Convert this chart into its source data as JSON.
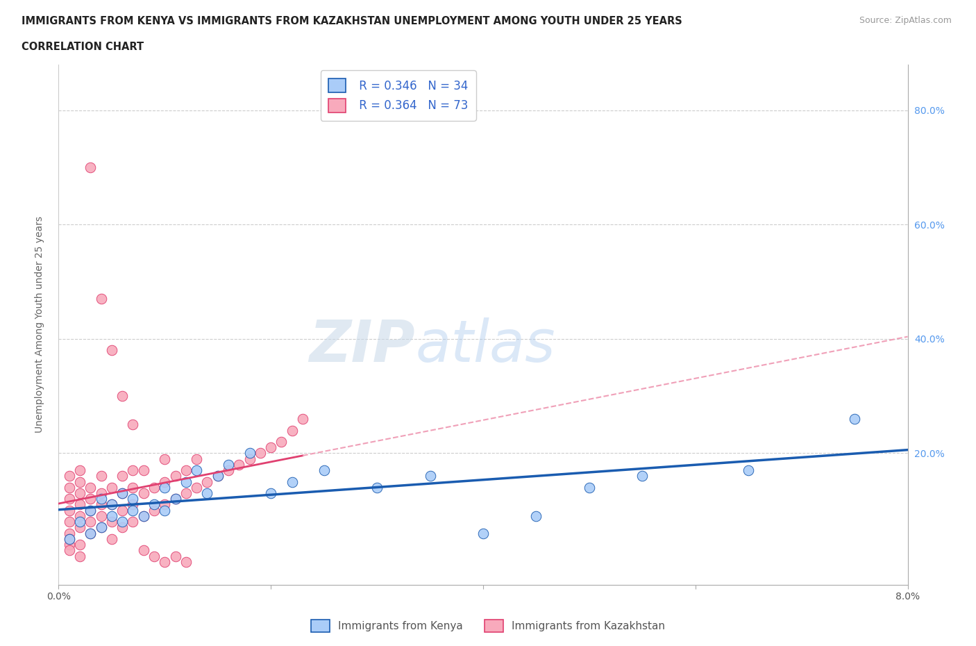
{
  "title_line1": "IMMIGRANTS FROM KENYA VS IMMIGRANTS FROM KAZAKHSTAN UNEMPLOYMENT AMONG YOUTH UNDER 25 YEARS",
  "title_line2": "CORRELATION CHART",
  "source": "Source: ZipAtlas.com",
  "ylabel": "Unemployment Among Youth under 25 years",
  "xlim": [
    0.0,
    0.08
  ],
  "ylim": [
    -0.03,
    0.88
  ],
  "legend_kenya": "Immigrants from Kenya",
  "legend_kazakhstan": "Immigrants from Kazakhstan",
  "r_kenya": 0.346,
  "n_kenya": 34,
  "r_kazakhstan": 0.364,
  "n_kazakhstan": 73,
  "kenya_color": "#aaccf8",
  "kenya_line_color": "#1a5cb0",
  "kazakhstan_color": "#f8aabc",
  "kazakhstan_line_color": "#e04070",
  "kazakhstan_dashed_color": "#f0a0b8",
  "watermark_zip": "ZIP",
  "watermark_atlas": "atlas",
  "kenya_x": [
    0.001,
    0.002,
    0.003,
    0.003,
    0.004,
    0.004,
    0.005,
    0.005,
    0.006,
    0.006,
    0.007,
    0.007,
    0.008,
    0.009,
    0.01,
    0.01,
    0.011,
    0.012,
    0.013,
    0.014,
    0.015,
    0.016,
    0.018,
    0.02,
    0.022,
    0.025,
    0.03,
    0.035,
    0.04,
    0.045,
    0.05,
    0.055,
    0.065,
    0.075
  ],
  "kenya_y": [
    0.05,
    0.08,
    0.06,
    0.1,
    0.07,
    0.12,
    0.09,
    0.11,
    0.08,
    0.13,
    0.1,
    0.12,
    0.09,
    0.11,
    0.1,
    0.14,
    0.12,
    0.15,
    0.17,
    0.13,
    0.16,
    0.18,
    0.2,
    0.13,
    0.15,
    0.17,
    0.14,
    0.16,
    0.06,
    0.09,
    0.14,
    0.16,
    0.17,
    0.26
  ],
  "kazakhstan_x": [
    0.001,
    0.001,
    0.001,
    0.001,
    0.001,
    0.001,
    0.001,
    0.001,
    0.001,
    0.002,
    0.002,
    0.002,
    0.002,
    0.002,
    0.002,
    0.002,
    0.002,
    0.003,
    0.003,
    0.003,
    0.003,
    0.003,
    0.004,
    0.004,
    0.004,
    0.004,
    0.004,
    0.005,
    0.005,
    0.005,
    0.005,
    0.006,
    0.006,
    0.006,
    0.006,
    0.007,
    0.007,
    0.007,
    0.007,
    0.008,
    0.008,
    0.008,
    0.009,
    0.009,
    0.01,
    0.01,
    0.01,
    0.011,
    0.011,
    0.012,
    0.012,
    0.013,
    0.013,
    0.014,
    0.015,
    0.016,
    0.017,
    0.018,
    0.019,
    0.02,
    0.021,
    0.022,
    0.023,
    0.003,
    0.004,
    0.005,
    0.006,
    0.007,
    0.008,
    0.009,
    0.01,
    0.011,
    0.012
  ],
  "kazakhstan_y": [
    0.04,
    0.06,
    0.08,
    0.1,
    0.12,
    0.14,
    0.16,
    0.03,
    0.05,
    0.07,
    0.09,
    0.11,
    0.13,
    0.15,
    0.17,
    0.02,
    0.04,
    0.06,
    0.08,
    0.1,
    0.12,
    0.14,
    0.07,
    0.09,
    0.11,
    0.13,
    0.16,
    0.05,
    0.08,
    0.11,
    0.14,
    0.07,
    0.1,
    0.13,
    0.16,
    0.08,
    0.11,
    0.14,
    0.17,
    0.09,
    0.13,
    0.17,
    0.1,
    0.14,
    0.11,
    0.15,
    0.19,
    0.12,
    0.16,
    0.13,
    0.17,
    0.14,
    0.19,
    0.15,
    0.16,
    0.17,
    0.18,
    0.19,
    0.2,
    0.21,
    0.22,
    0.24,
    0.26,
    0.7,
    0.47,
    0.38,
    0.3,
    0.25,
    0.03,
    0.02,
    0.01,
    0.02,
    0.01
  ],
  "ytick_values": [
    0.0,
    0.2,
    0.4,
    0.6,
    0.8
  ],
  "ytick_labels_right": [
    "",
    "20.0%",
    "40.0%",
    "60.0%",
    "80.0%"
  ],
  "xtick_values": [
    0.0,
    0.02,
    0.04,
    0.06,
    0.08
  ],
  "xtick_labels": [
    "0.0%",
    "",
    "",
    "",
    "8.0%"
  ]
}
